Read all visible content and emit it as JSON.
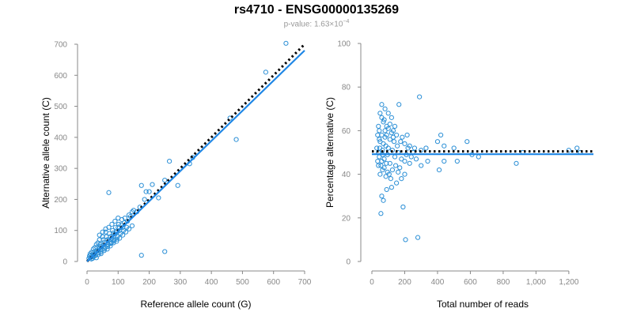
{
  "title": "rs4710 - ENSG00000135269",
  "subtitle": {
    "prefix": "p-value: 1.63×10",
    "exponent": "−4"
  },
  "colors": {
    "points": "#2b8fd6",
    "fit": "#1f87e6",
    "reference": "#000000",
    "axis": "#888888"
  },
  "chart_data": [
    {
      "type": "scatter",
      "xlabel": "Reference allele count (G)",
      "ylabel": "Alternative allele count (C)",
      "xlim": [
        0,
        700
      ],
      "ylim": [
        0,
        700
      ],
      "xticks": [
        0,
        100,
        200,
        300,
        400,
        500,
        600,
        700
      ],
      "yticks": [
        0,
        100,
        200,
        300,
        400,
        500,
        600,
        700
      ],
      "xtick_labels": [
        "0",
        "100",
        "200",
        "300",
        "400",
        "500",
        "600",
        "700"
      ],
      "ytick_labels": [
        "0",
        "100",
        "200",
        "300",
        "400",
        "500",
        "600",
        "700"
      ],
      "grid": false,
      "lines": [
        {
          "style": "dotted",
          "color": "#000000",
          "x": [
            0,
            700
          ],
          "y": [
            0,
            700
          ]
        },
        {
          "style": "solid",
          "color": "#1f87e6",
          "x": [
            0,
            700
          ],
          "y": [
            0,
            680
          ]
        }
      ],
      "points": [
        [
          640,
          703
        ],
        [
          575,
          610
        ],
        [
          460,
          462
        ],
        [
          480,
          393
        ],
        [
          340,
          335
        ],
        [
          330,
          315
        ],
        [
          265,
          323
        ],
        [
          292,
          245
        ],
        [
          250,
          262
        ],
        [
          250,
          32
        ],
        [
          175,
          20
        ],
        [
          70,
          222
        ],
        [
          230,
          205
        ],
        [
          210,
          248
        ],
        [
          200,
          225
        ],
        [
          190,
          225
        ],
        [
          185,
          200
        ],
        [
          170,
          175
        ],
        [
          160,
          160
        ],
        [
          175,
          245
        ],
        [
          150,
          165
        ],
        [
          140,
          145
        ],
        [
          130,
          130
        ],
        [
          145,
          160
        ],
        [
          120,
          125
        ],
        [
          115,
          110
        ],
        [
          110,
          118
        ],
        [
          105,
          100
        ],
        [
          100,
          110
        ],
        [
          95,
          95
        ],
        [
          90,
          88
        ],
        [
          85,
          92
        ],
        [
          80,
          75
        ],
        [
          75,
          80
        ],
        [
          70,
          68
        ],
        [
          65,
          70
        ],
        [
          60,
          60
        ],
        [
          55,
          62
        ],
        [
          50,
          50
        ],
        [
          45,
          48
        ],
        [
          40,
          42
        ],
        [
          35,
          35
        ],
        [
          30,
          33
        ],
        [
          25,
          25
        ],
        [
          20,
          22
        ],
        [
          15,
          15
        ],
        [
          10,
          12
        ],
        [
          12,
          20
        ],
        [
          18,
          10
        ],
        [
          22,
          30
        ],
        [
          28,
          20
        ],
        [
          32,
          45
        ],
        [
          38,
          28
        ],
        [
          42,
          55
        ],
        [
          48,
          38
        ],
        [
          52,
          70
        ],
        [
          58,
          45
        ],
        [
          62,
          80
        ],
        [
          68,
          55
        ],
        [
          72,
          90
        ],
        [
          78,
          60
        ],
        [
          82,
          100
        ],
        [
          88,
          70
        ],
        [
          92,
          110
        ],
        [
          98,
          80
        ],
        [
          102,
          120
        ],
        [
          108,
          90
        ],
        [
          112,
          135
        ],
        [
          118,
          100
        ],
        [
          122,
          140
        ],
        [
          128,
          110
        ],
        [
          135,
          150
        ],
        [
          60,
          95
        ],
        [
          50,
          80
        ],
        [
          40,
          70
        ],
        [
          30,
          55
        ],
        [
          20,
          40
        ],
        [
          15,
          30
        ],
        [
          45,
          25
        ],
        [
          55,
          35
        ],
        [
          65,
          40
        ],
        [
          75,
          50
        ],
        [
          85,
          60
        ],
        [
          95,
          65
        ],
        [
          105,
          75
        ],
        [
          115,
          85
        ],
        [
          125,
          95
        ],
        [
          135,
          105
        ],
        [
          145,
          115
        ],
        [
          100,
          140
        ],
        [
          90,
          130
        ],
        [
          80,
          120
        ],
        [
          70,
          110
        ],
        [
          60,
          105
        ],
        [
          50,
          95
        ],
        [
          40,
          85
        ],
        [
          35,
          60
        ],
        [
          25,
          45
        ],
        [
          20,
          15
        ],
        [
          30,
          12
        ],
        [
          10,
          25
        ],
        [
          8,
          18
        ],
        [
          14,
          8
        ],
        [
          6,
          10
        ],
        [
          24,
          18
        ],
        [
          36,
          22
        ],
        [
          44,
          30
        ],
        [
          56,
          40
        ],
        [
          66,
          48
        ],
        [
          76,
          58
        ],
        [
          86,
          66
        ],
        [
          96,
          72
        ]
      ]
    },
    {
      "type": "scatter",
      "xlabel": "Total number of reads",
      "ylabel": "Percentage alternative (C)",
      "xlim": [
        0,
        1350
      ],
      "ylim": [
        0,
        100
      ],
      "xticks": [
        0,
        200,
        400,
        600,
        800,
        1000,
        1200
      ],
      "yticks": [
        0,
        20,
        40,
        60,
        80,
        100
      ],
      "xtick_labels": [
        "0",
        "200",
        "400",
        "600",
        "800",
        "1,000",
        "1,200"
      ],
      "ytick_labels": [
        "0",
        "20",
        "40",
        "60",
        "80",
        "100"
      ],
      "grid": false,
      "lines": [
        {
          "style": "dotted",
          "color": "#000000",
          "x": [
            0,
            1350
          ],
          "y": [
            50.5,
            50.5
          ]
        },
        {
          "style": "solid",
          "color": "#1f87e6",
          "x": [
            0,
            1350
          ],
          "y": [
            49.2,
            49.2
          ]
        }
      ],
      "points": [
        [
          290,
          75.5
        ],
        [
          60,
          72
        ],
        [
          80,
          70
        ],
        [
          50,
          68
        ],
        [
          100,
          68
        ],
        [
          165,
          72
        ],
        [
          120,
          66
        ],
        [
          70,
          64
        ],
        [
          90,
          62
        ],
        [
          40,
          62
        ],
        [
          130,
          60
        ],
        [
          150,
          58
        ],
        [
          60,
          58
        ],
        [
          80,
          57
        ],
        [
          110,
          56
        ],
        [
          45,
          56
        ],
        [
          175,
          55
        ],
        [
          200,
          54
        ],
        [
          230,
          53
        ],
        [
          260,
          52
        ],
        [
          300,
          51
        ],
        [
          330,
          52
        ],
        [
          400,
          55
        ],
        [
          420,
          58
        ],
        [
          440,
          53
        ],
        [
          500,
          52
        ],
        [
          520,
          46
        ],
        [
          580,
          55
        ],
        [
          610,
          49
        ],
        [
          650,
          48
        ],
        [
          880,
          45
        ],
        [
          920,
          50
        ],
        [
          1200,
          51
        ],
        [
          1250,
          52
        ],
        [
          1270,
          50
        ],
        [
          300,
          44
        ],
        [
          340,
          46
        ],
        [
          410,
          42
        ],
        [
          440,
          46
        ],
        [
          230,
          45
        ],
        [
          200,
          40
        ],
        [
          180,
          38
        ],
        [
          150,
          36
        ],
        [
          120,
          34
        ],
        [
          90,
          33
        ],
        [
          60,
          30
        ],
        [
          70,
          28
        ],
        [
          55,
          22
        ],
        [
          190,
          25
        ],
        [
          205,
          10
        ],
        [
          280,
          11
        ],
        [
          140,
          48
        ],
        [
          160,
          50
        ],
        [
          180,
          47
        ],
        [
          100,
          52
        ],
        [
          110,
          45
        ],
        [
          95,
          49
        ],
        [
          85,
          53
        ],
        [
          75,
          47
        ],
        [
          65,
          51
        ],
        [
          55,
          44
        ],
        [
          50,
          55
        ],
        [
          45,
          48
        ],
        [
          40,
          50
        ],
        [
          35,
          46
        ],
        [
          30,
          52
        ],
        [
          125,
          42
        ],
        [
          135,
          55
        ],
        [
          145,
          44
        ],
        [
          155,
          53
        ],
        [
          170,
          43
        ],
        [
          185,
          57
        ],
        [
          210,
          49
        ],
        [
          220,
          52
        ],
        [
          240,
          48
        ],
        [
          250,
          50
        ],
        [
          270,
          47
        ],
        [
          115,
          38
        ],
        [
          105,
          40
        ],
        [
          95,
          41
        ],
        [
          85,
          39
        ],
        [
          75,
          43
        ],
        [
          65,
          42
        ],
        [
          60,
          46
        ],
        [
          70,
          54
        ],
        [
          80,
          60
        ],
        [
          90,
          58
        ],
        [
          100,
          61
        ],
        [
          110,
          63
        ],
        [
          120,
          59
        ],
        [
          130,
          57
        ],
        [
          140,
          62
        ],
        [
          60,
          66
        ],
        [
          75,
          65
        ],
        [
          45,
          60
        ],
        [
          50,
          40
        ],
        [
          40,
          44
        ],
        [
          35,
          58
        ],
        [
          200,
          46
        ],
        [
          215,
          58
        ],
        [
          160,
          41
        ],
        [
          125,
          51
        ],
        [
          88,
          45
        ],
        [
          66,
          49
        ],
        [
          48,
          52
        ]
      ]
    }
  ]
}
